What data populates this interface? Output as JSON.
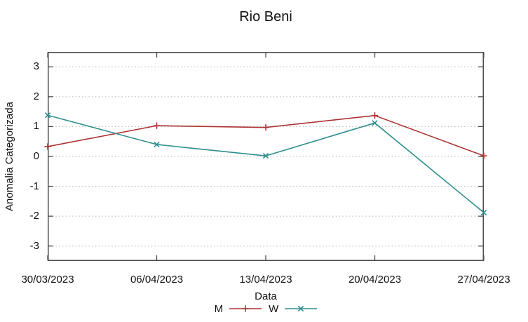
{
  "chart_data": {
    "type": "line",
    "title": "Rio Beni",
    "xlabel": "Data",
    "ylabel": "Anomalia Categorizada",
    "categories": [
      "30/03/2023",
      "06/04/2023",
      "13/04/2023",
      "20/04/2023",
      "27/04/2023"
    ],
    "series": [
      {
        "name": "M",
        "color": "#ad3333",
        "marker": "plus",
        "values": [
          0.33,
          1.03,
          0.97,
          1.37,
          0.02
        ]
      },
      {
        "name": "W",
        "color": "#2f8e8e",
        "marker": "cross",
        "values": [
          1.38,
          0.4,
          0.02,
          1.12,
          -1.88
        ]
      }
    ],
    "ylim": [
      -3.5,
      3.5
    ],
    "yticks": [
      -3,
      -2,
      -1,
      0,
      1,
      2,
      3
    ],
    "grid": "horizontal-dotted",
    "legend_position": "bottom-center",
    "colors": {
      "border": "#4d4d4d",
      "gridline": "#b3b3b3",
      "text": "#111111",
      "background": "#ffffff"
    }
  }
}
